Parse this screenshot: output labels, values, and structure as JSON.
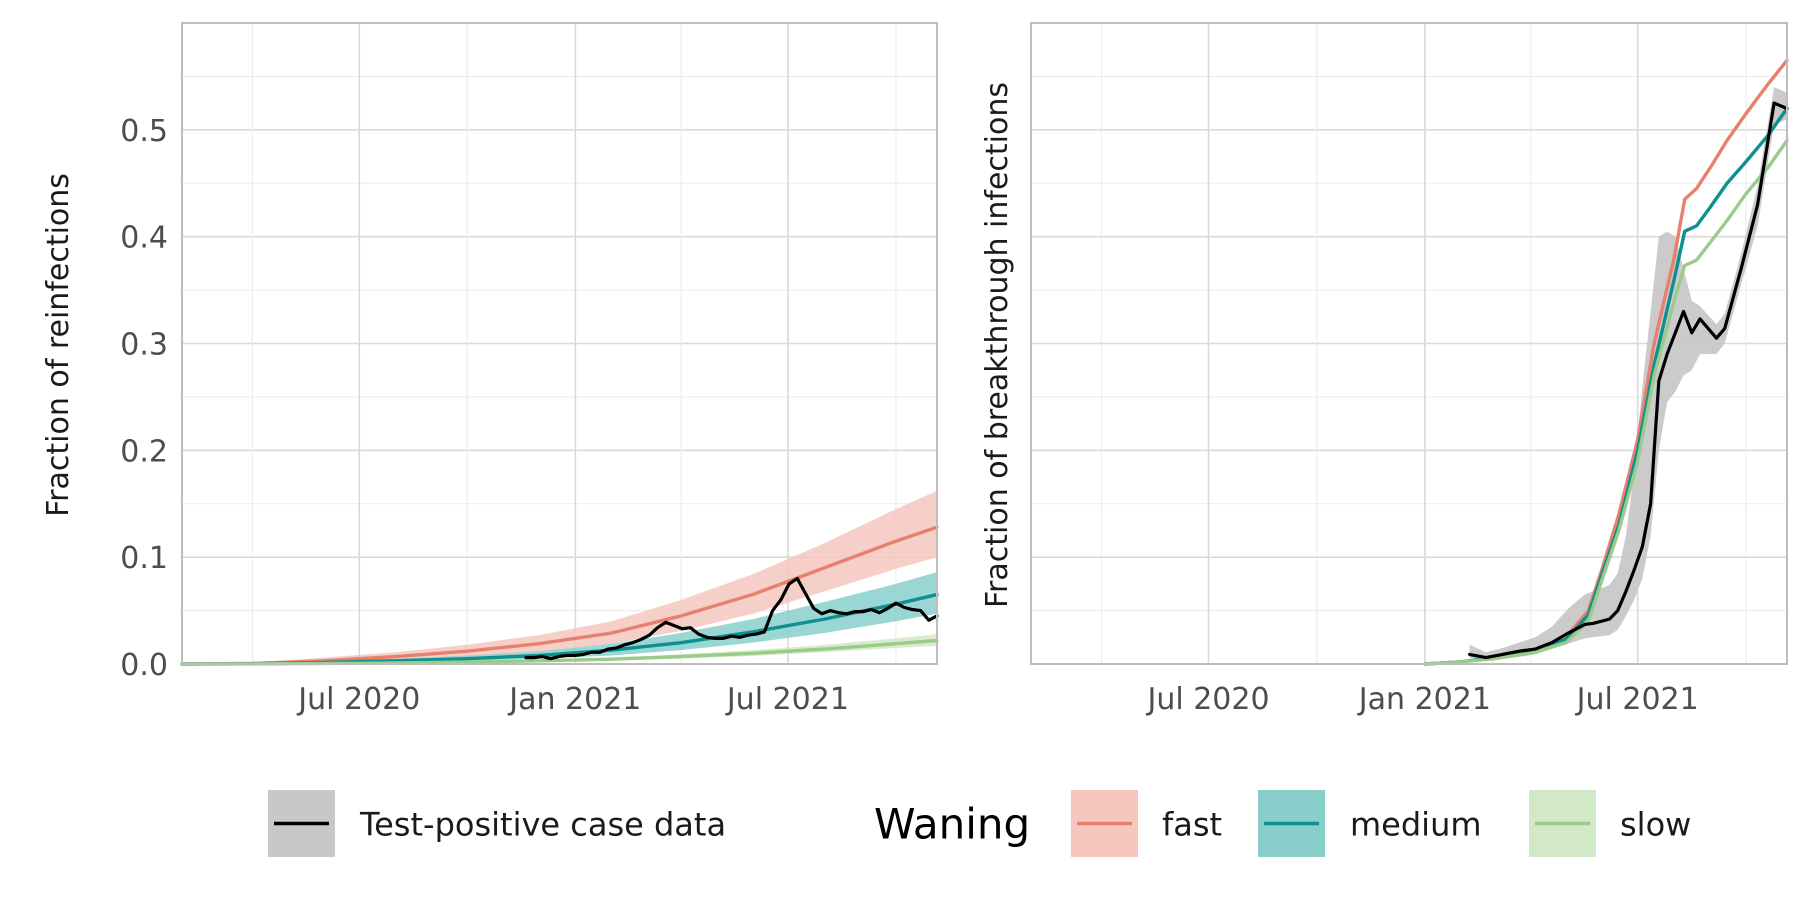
{
  "chart_data": [
    {
      "type": "line",
      "panel": "left",
      "ylabel": "Fraction of reinfections",
      "xlabel": "",
      "x_ticks": [
        "Jul 2020",
        "Jan 2021",
        "Jul 2021"
      ],
      "x_tick_dates": [
        "2020-07-01",
        "2021-01-01",
        "2021-07-01"
      ],
      "x_range": [
        "2020-02-01",
        "2021-11-05"
      ],
      "y_ticks": [
        "0.0",
        "0.1",
        "0.2",
        "0.3",
        "0.4",
        "0.5"
      ],
      "ylim": [
        0,
        0.6
      ],
      "grid": true,
      "series": [
        {
          "name": "fast",
          "color": "#E8806E",
          "band_color": "#F5C7BE",
          "x": [
            "2020-02-01",
            "2020-04-01",
            "2020-06-01",
            "2020-08-01",
            "2020-10-01",
            "2020-12-01",
            "2021-02-01",
            "2021-04-01",
            "2021-06-01",
            "2021-08-01",
            "2021-10-01",
            "2021-11-05"
          ],
          "y": [
            0.0,
            0.0005,
            0.003,
            0.007,
            0.012,
            0.019,
            0.029,
            0.045,
            0.065,
            0.09,
            0.115,
            0.128
          ],
          "lower": [
            0.0,
            0.0002,
            0.0015,
            0.004,
            0.007,
            0.012,
            0.019,
            0.031,
            0.047,
            0.068,
            0.089,
            0.1
          ],
          "upper": [
            0.0,
            0.001,
            0.006,
            0.011,
            0.018,
            0.027,
            0.04,
            0.06,
            0.084,
            0.113,
            0.145,
            0.162
          ]
        },
        {
          "name": "medium",
          "color": "#0E9090",
          "band_color": "#88CFCC",
          "x": [
            "2020-02-01",
            "2020-04-01",
            "2020-06-01",
            "2020-08-01",
            "2020-10-01",
            "2020-12-01",
            "2021-02-01",
            "2021-04-01",
            "2021-06-01",
            "2021-08-01",
            "2021-10-01",
            "2021-11-05"
          ],
          "y": [
            0.0,
            0.0003,
            0.0015,
            0.003,
            0.005,
            0.008,
            0.013,
            0.02,
            0.03,
            0.042,
            0.056,
            0.065
          ],
          "lower": [
            0.0,
            0.0001,
            0.0008,
            0.0018,
            0.0032,
            0.005,
            0.008,
            0.013,
            0.02,
            0.029,
            0.04,
            0.047
          ],
          "upper": [
            0.0,
            0.0005,
            0.0025,
            0.0048,
            0.0078,
            0.012,
            0.019,
            0.029,
            0.042,
            0.058,
            0.075,
            0.086
          ]
        },
        {
          "name": "slow",
          "color": "#99CC8A",
          "band_color": "#D2E9C8",
          "x": [
            "2020-02-01",
            "2020-04-01",
            "2020-06-01",
            "2020-08-01",
            "2020-10-01",
            "2020-12-01",
            "2021-02-01",
            "2021-04-01",
            "2021-06-01",
            "2021-08-01",
            "2021-10-01",
            "2021-11-05"
          ],
          "y": [
            0.0,
            0.0001,
            0.0005,
            0.001,
            0.0018,
            0.003,
            0.0045,
            0.007,
            0.01,
            0.014,
            0.019,
            0.022
          ],
          "lower": [
            0.0,
            0.0,
            0.0003,
            0.0007,
            0.0012,
            0.002,
            0.0032,
            0.005,
            0.0075,
            0.011,
            0.015,
            0.017
          ],
          "upper": [
            0.0,
            0.0002,
            0.0008,
            0.0015,
            0.0026,
            0.0042,
            0.006,
            0.0092,
            0.013,
            0.018,
            0.024,
            0.028
          ]
        },
        {
          "name": "Test-positive case data",
          "color": "#000000",
          "x": [
            "2020-11-20",
            "2020-11-27",
            "2020-12-04",
            "2020-12-11",
            "2020-12-18",
            "2020-12-25",
            "2021-01-01",
            "2021-01-08",
            "2021-01-15",
            "2021-01-22",
            "2021-01-29",
            "2021-02-05",
            "2021-02-12",
            "2021-02-19",
            "2021-02-26",
            "2021-03-05",
            "2021-03-12",
            "2021-03-19",
            "2021-03-26",
            "2021-04-02",
            "2021-04-09",
            "2021-04-16",
            "2021-04-23",
            "2021-04-30",
            "2021-05-07",
            "2021-05-14",
            "2021-05-21",
            "2021-05-28",
            "2021-06-04",
            "2021-06-11",
            "2021-06-18",
            "2021-06-25",
            "2021-07-02",
            "2021-07-09",
            "2021-07-16",
            "2021-07-23",
            "2021-07-30",
            "2021-08-06",
            "2021-08-13",
            "2021-08-20",
            "2021-08-27",
            "2021-09-03",
            "2021-09-10",
            "2021-09-17",
            "2021-09-24",
            "2021-10-01",
            "2021-10-08",
            "2021-10-15",
            "2021-10-22",
            "2021-10-29",
            "2021-11-05"
          ],
          "y": [
            0.006,
            0.006,
            0.007,
            0.005,
            0.007,
            0.008,
            0.008,
            0.009,
            0.011,
            0.011,
            0.014,
            0.015,
            0.018,
            0.02,
            0.023,
            0.027,
            0.034,
            0.039,
            0.036,
            0.033,
            0.034,
            0.028,
            0.025,
            0.024,
            0.024,
            0.026,
            0.025,
            0.027,
            0.028,
            0.03,
            0.05,
            0.06,
            0.075,
            0.08,
            0.066,
            0.052,
            0.047,
            0.05,
            0.048,
            0.047,
            0.049,
            0.049,
            0.051,
            0.048,
            0.052,
            0.057,
            0.053,
            0.051,
            0.05,
            0.041,
            0.045
          ]
        }
      ]
    },
    {
      "type": "line",
      "panel": "right",
      "ylabel": "Fraction of breakthrough infections",
      "xlabel": "",
      "x_ticks": [
        "Jul 2020",
        "Jan 2021",
        "Jul 2021"
      ],
      "x_tick_dates": [
        "2020-07-01",
        "2021-01-01",
        "2021-07-01"
      ],
      "x_range": [
        "2020-02-01",
        "2021-11-05"
      ],
      "ylim": [
        0,
        0.6
      ],
      "grid": true,
      "series": [
        {
          "name": "fast",
          "color": "#E8806E",
          "x": [
            "2021-01-01",
            "2021-02-01",
            "2021-03-01",
            "2021-04-01",
            "2021-05-01",
            "2021-05-20",
            "2021-06-01",
            "2021-06-15",
            "2021-07-01",
            "2021-07-15",
            "2021-08-01",
            "2021-08-10",
            "2021-08-20",
            "2021-09-01",
            "2021-09-15",
            "2021-10-01",
            "2021-10-20",
            "2021-11-05"
          ],
          "y": [
            0.0,
            0.002,
            0.006,
            0.012,
            0.025,
            0.05,
            0.09,
            0.14,
            0.21,
            0.3,
            0.38,
            0.435,
            0.445,
            0.465,
            0.49,
            0.515,
            0.543,
            0.565
          ]
        },
        {
          "name": "medium",
          "color": "#0E9090",
          "x": [
            "2021-01-01",
            "2021-02-01",
            "2021-03-01",
            "2021-04-01",
            "2021-05-01",
            "2021-05-20",
            "2021-06-01",
            "2021-06-15",
            "2021-07-01",
            "2021-07-15",
            "2021-08-01",
            "2021-08-10",
            "2021-08-20",
            "2021-09-01",
            "2021-09-15",
            "2021-10-01",
            "2021-10-20",
            "2021-11-05"
          ],
          "y": [
            0.0,
            0.002,
            0.006,
            0.011,
            0.023,
            0.046,
            0.085,
            0.13,
            0.2,
            0.28,
            0.36,
            0.405,
            0.41,
            0.428,
            0.45,
            0.47,
            0.495,
            0.52
          ]
        },
        {
          "name": "slow",
          "color": "#99CC8A",
          "x": [
            "2021-01-01",
            "2021-02-01",
            "2021-03-01",
            "2021-04-01",
            "2021-05-01",
            "2021-05-20",
            "2021-06-01",
            "2021-06-15",
            "2021-07-01",
            "2021-07-15",
            "2021-08-01",
            "2021-08-10",
            "2021-08-20",
            "2021-09-01",
            "2021-09-15",
            "2021-10-01",
            "2021-10-20",
            "2021-11-05"
          ],
          "y": [
            0.0,
            0.002,
            0.005,
            0.01,
            0.02,
            0.04,
            0.08,
            0.125,
            0.19,
            0.27,
            0.34,
            0.373,
            0.378,
            0.395,
            0.415,
            0.44,
            0.465,
            0.49
          ]
        },
        {
          "name": "Test-positive case data",
          "color": "#000000",
          "x": [
            "2021-02-08",
            "2021-02-22",
            "2021-03-08",
            "2021-03-22",
            "2021-04-05",
            "2021-04-19",
            "2021-05-03",
            "2021-05-17",
            "2021-05-24",
            "2021-06-07",
            "2021-06-14",
            "2021-06-21",
            "2021-06-28",
            "2021-07-05",
            "2021-07-12",
            "2021-07-19",
            "2021-07-26",
            "2021-08-02",
            "2021-08-09",
            "2021-08-16",
            "2021-08-23",
            "2021-09-06",
            "2021-09-13",
            "2021-09-27",
            "2021-10-11",
            "2021-10-25",
            "2021-11-05"
          ],
          "y": [
            0.009,
            0.006,
            0.009,
            0.012,
            0.014,
            0.02,
            0.029,
            0.037,
            0.038,
            0.042,
            0.05,
            0.068,
            0.088,
            0.11,
            0.15,
            0.265,
            0.29,
            0.31,
            0.33,
            0.31,
            0.323,
            0.305,
            0.314,
            0.37,
            0.43,
            0.525,
            0.52
          ],
          "lower": [
            0.006,
            0.004,
            0.006,
            0.008,
            0.009,
            0.014,
            0.019,
            0.024,
            0.025,
            0.027,
            0.032,
            0.045,
            0.06,
            0.08,
            0.12,
            0.2,
            0.245,
            0.255,
            0.27,
            0.275,
            0.29,
            0.29,
            0.3,
            0.355,
            0.41,
            0.505,
            0.51
          ],
          "upper": [
            0.018,
            0.011,
            0.015,
            0.02,
            0.025,
            0.035,
            0.052,
            0.065,
            0.068,
            0.074,
            0.085,
            0.12,
            0.18,
            0.26,
            0.33,
            0.4,
            0.405,
            0.4,
            0.37,
            0.34,
            0.335,
            0.318,
            0.328,
            0.384,
            0.448,
            0.54,
            0.535
          ]
        }
      ]
    }
  ],
  "legend": {
    "position": "bottom",
    "data_label": "Test-positive case data",
    "title": "Waning",
    "items": [
      {
        "label": "fast",
        "line_color": "#E8806E",
        "fill_color": "#F5C7BE"
      },
      {
        "label": "medium",
        "line_color": "#0E9090",
        "fill_color": "#88CFCC"
      },
      {
        "label": "slow",
        "line_color": "#99CC8A",
        "fill_color": "#D2E9C8"
      }
    ],
    "data_fill_color": "#C8C8C8"
  }
}
